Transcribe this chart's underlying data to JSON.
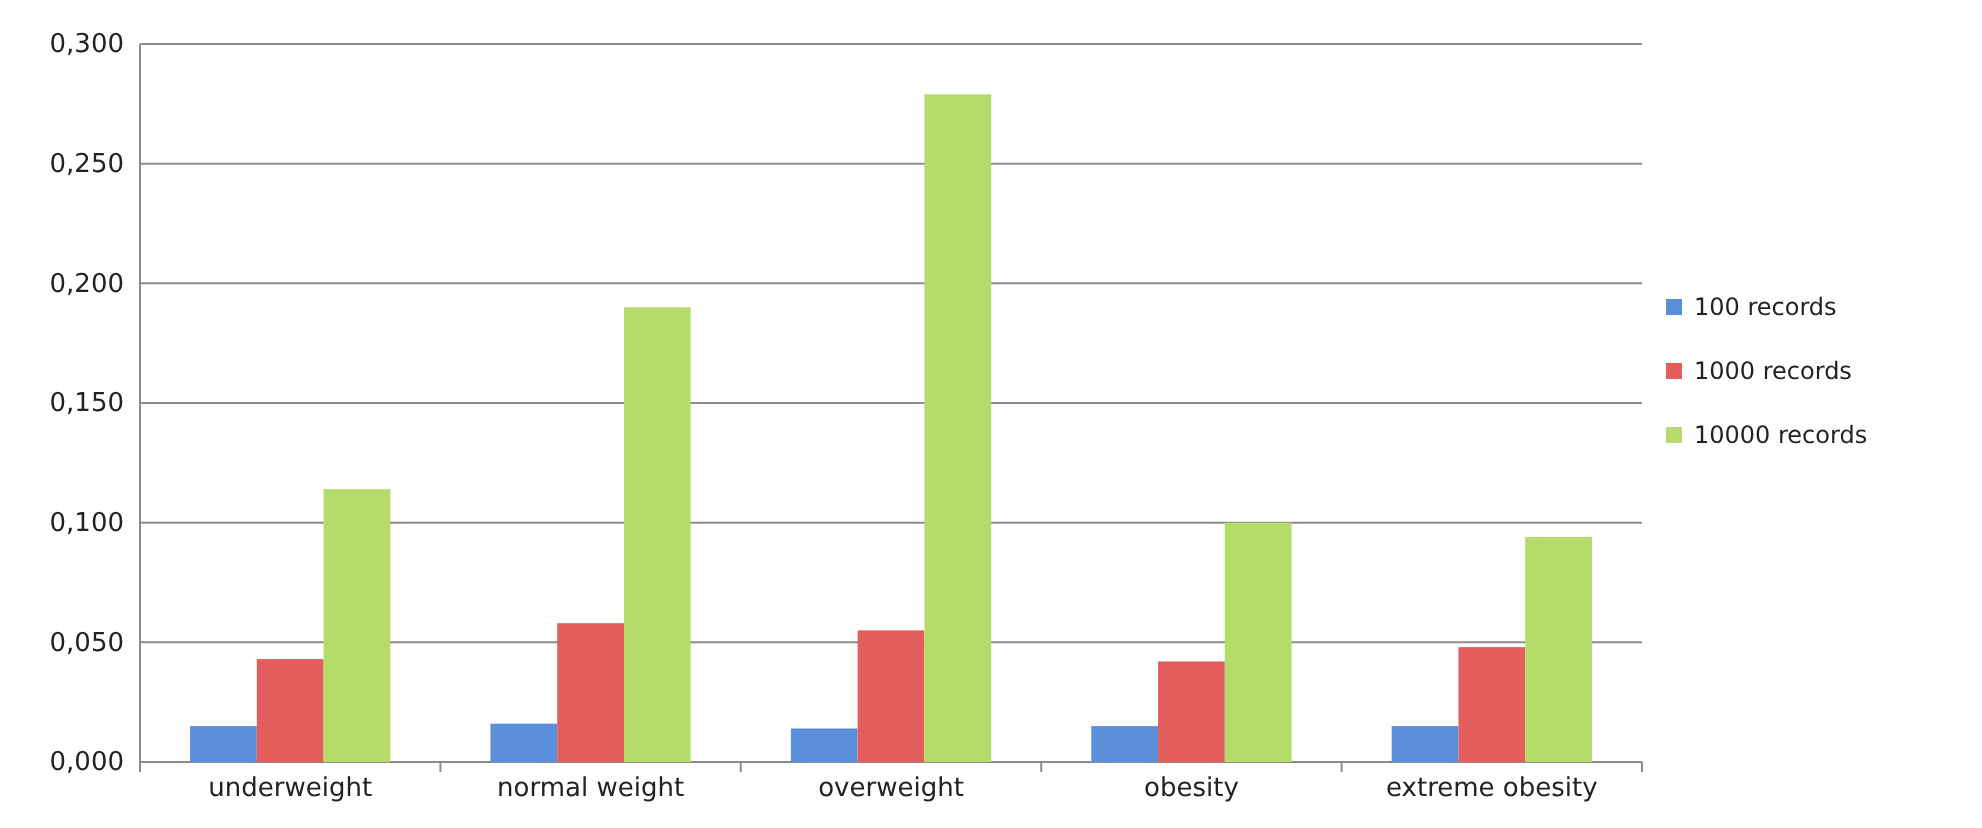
{
  "chart_data": {
    "type": "bar",
    "categories": [
      "underweight",
      "normal weight",
      "overweight",
      "obesity",
      "extreme obesity"
    ],
    "series": [
      {
        "name": "100 records",
        "color": "#5b8fd9",
        "values": [
          0.015,
          0.016,
          0.014,
          0.015,
          0.015
        ]
      },
      {
        "name": "1000 records",
        "color": "#e35d5d",
        "values": [
          0.043,
          0.058,
          0.055,
          0.042,
          0.048
        ]
      },
      {
        "name": "10000 records",
        "color": "#b5dc6a",
        "values": [
          0.114,
          0.19,
          0.279,
          0.1,
          0.094
        ]
      }
    ],
    "ylim": [
      0,
      0.3
    ],
    "yticks": [
      {
        "value": 0,
        "label": "0,000"
      },
      {
        "value": 0.05,
        "label": "0,050"
      },
      {
        "value": 0.1,
        "label": "0,100"
      },
      {
        "value": 0.15,
        "label": "0,150"
      },
      {
        "value": 0.2,
        "label": "0,200"
      },
      {
        "value": 0.25,
        "label": "0,250"
      },
      {
        "value": 0.3,
        "label": "0,300"
      }
    ],
    "grid": "y",
    "legend": "right"
  }
}
